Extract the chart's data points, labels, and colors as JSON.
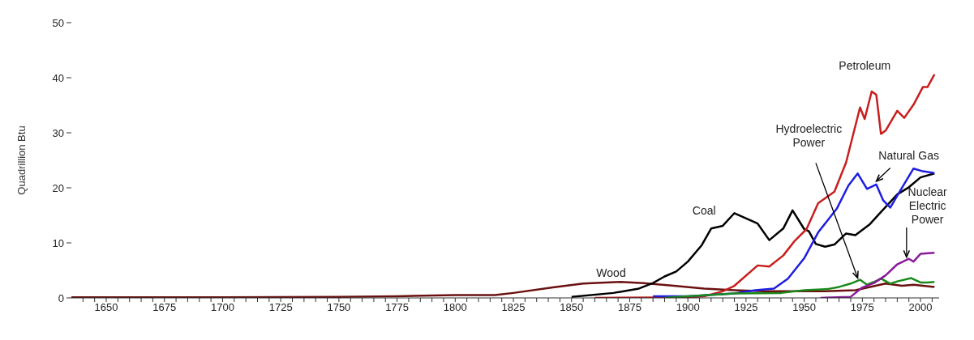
{
  "chart_data": {
    "type": "line",
    "ylabel": "Quadrillion Btu",
    "xlim": [
      1635,
      2008
    ],
    "ylim": [
      0,
      50
    ],
    "yticks": [
      0,
      10,
      20,
      30,
      40,
      50
    ],
    "xticks": [
      {
        "value": 1640,
        "label": null
      },
      {
        "value": 1645,
        "label": null
      },
      1650,
      {
        "value": 1655,
        "label": null
      },
      {
        "value": 1660,
        "label": null
      },
      {
        "value": 1665,
        "label": null
      },
      {
        "value": 1670,
        "label": null
      },
      1675,
      {
        "value": 1680,
        "label": null
      },
      {
        "value": 1685,
        "label": null
      },
      {
        "value": 1690,
        "label": null
      },
      {
        "value": 1695,
        "label": null
      },
      1700,
      {
        "value": 1705,
        "label": null
      },
      {
        "value": 1710,
        "label": null
      },
      {
        "value": 1715,
        "label": null
      },
      {
        "value": 1720,
        "label": null
      },
      1725,
      {
        "value": 1730,
        "label": null
      },
      {
        "value": 1735,
        "label": null
      },
      {
        "value": 1740,
        "label": null
      },
      {
        "value": 1745,
        "label": null
      },
      1750,
      {
        "value": 1755,
        "label": null
      },
      {
        "value": 1760,
        "label": null
      },
      {
        "value": 1765,
        "label": null
      },
      {
        "value": 1770,
        "label": null
      },
      1775,
      {
        "value": 1780,
        "label": null
      },
      {
        "value": 1785,
        "label": null
      },
      {
        "value": 1790,
        "label": null
      },
      {
        "value": 1795,
        "label": null
      },
      1800,
      {
        "value": 1805,
        "label": null
      },
      {
        "value": 1810,
        "label": null
      },
      {
        "value": 1815,
        "label": null
      },
      {
        "value": 1820,
        "label": null
      },
      1825,
      {
        "value": 1830,
        "label": null
      },
      {
        "value": 1835,
        "label": null
      },
      {
        "value": 1840,
        "label": null
      },
      {
        "value": 1845,
        "label": null
      },
      1850,
      {
        "value": 1855,
        "label": null
      },
      {
        "value": 1860,
        "label": null
      },
      {
        "value": 1865,
        "label": null
      },
      {
        "value": 1870,
        "label": null
      },
      1875,
      {
        "value": 1880,
        "label": null
      },
      {
        "value": 1885,
        "label": null
      },
      {
        "value": 1890,
        "label": null
      },
      {
        "value": 1895,
        "label": null
      },
      1900,
      {
        "value": 1905,
        "label": null
      },
      {
        "value": 1910,
        "label": null
      },
      {
        "value": 1915,
        "label": null
      },
      {
        "value": 1920,
        "label": null
      },
      1925,
      {
        "value": 1930,
        "label": null
      },
      {
        "value": 1935,
        "label": null
      },
      {
        "value": 1940,
        "label": null
      },
      {
        "value": 1945,
        "label": null
      },
      1950,
      {
        "value": 1955,
        "label": null
      },
      {
        "value": 1960,
        "label": null
      },
      {
        "value": 1965,
        "label": null
      },
      {
        "value": 1970,
        "label": null
      },
      1975,
      {
        "value": 1980,
        "label": null
      },
      {
        "value": 1985,
        "label": null
      },
      {
        "value": 1990,
        "label": null
      },
      {
        "value": 1995,
        "label": null
      },
      2000,
      {
        "value": 2005,
        "label": null
      }
    ],
    "marker": "none",
    "line_style": "solid",
    "series": [
      {
        "name": "Wood",
        "color": "#6b1010",
        "x": [
          1635,
          1700,
          1750,
          1775,
          1800,
          1817,
          1825,
          1842,
          1855,
          1871,
          1881,
          1894,
          1907,
          1920,
          1933,
          1946,
          1959,
          1972,
          1985,
          1992,
          1997,
          2006
        ],
        "values": [
          0.1,
          0.1,
          0.2,
          0.3,
          0.5,
          0.5,
          0.9,
          1.9,
          2.6,
          2.9,
          2.7,
          2.2,
          1.7,
          1.4,
          1.2,
          1.2,
          1.2,
          1.4,
          2.6,
          2.2,
          2.4,
          2.0
        ]
      },
      {
        "name": "Coal",
        "color": "#000000",
        "x": [
          1850,
          1868,
          1879,
          1885,
          1890,
          1895,
          1900,
          1906,
          1910,
          1915,
          1920,
          1930,
          1935,
          1941,
          1945,
          1950,
          1952,
          1955,
          1959,
          1963,
          1968,
          1972,
          1978,
          1983,
          1990,
          1995,
          2000,
          2006
        ],
        "values": [
          0.2,
          0.9,
          1.7,
          2.7,
          3.9,
          4.8,
          6.6,
          9.6,
          12.6,
          13.1,
          15.4,
          13.5,
          10.5,
          12.6,
          15.9,
          12.5,
          12.1,
          9.8,
          9.3,
          9.7,
          11.7,
          11.4,
          13.3,
          15.6,
          18.8,
          20.1,
          21.9,
          22.6
        ]
      },
      {
        "name": "Petroleum",
        "color": "#c81e1e",
        "x": [
          1860,
          1900,
          1907,
          1915,
          1920,
          1930,
          1935,
          1941,
          1946,
          1951,
          1956,
          1963,
          1968,
          1974,
          1976,
          1979,
          1981,
          1983,
          1985,
          1990,
          1993,
          1997,
          2001,
          2003,
          2006
        ],
        "values": [
          0,
          0.1,
          0.3,
          1.2,
          2.2,
          5.9,
          5.7,
          7.7,
          10.4,
          12.5,
          17.2,
          19.3,
          24.6,
          34.6,
          32.5,
          37.5,
          36.9,
          29.8,
          30.4,
          34,
          32.7,
          35.1,
          38.3,
          38.3,
          40.6
        ]
      },
      {
        "name": "Natural Gas",
        "color": "#1e1ee0",
        "x": [
          1885,
          1900,
          1920,
          1929,
          1937,
          1943,
          1950,
          1956,
          1964,
          1969,
          1973,
          1977,
          1981,
          1984,
          1987,
          1991,
          1997,
          2001,
          2006
        ],
        "values": [
          0.3,
          0.3,
          0.8,
          1.4,
          1.7,
          3.5,
          7.2,
          11.9,
          16.2,
          20.4,
          22.6,
          19.8,
          20.6,
          17.7,
          16.4,
          19.3,
          23.5,
          23,
          22.7
        ]
      },
      {
        "name": "Hydroelectric Power",
        "color": "#1a8a1a",
        "x": [
          1890,
          1900,
          1920,
          1940,
          1950,
          1960,
          1965,
          1970,
          1974,
          1977,
          1980,
          1983,
          1987,
          1990,
          1996,
          2000,
          2003,
          2006
        ],
        "values": [
          0,
          0.3,
          0.8,
          0.9,
          1.4,
          1.6,
          2.0,
          2.6,
          3.3,
          2.4,
          2.9,
          3.5,
          2.6,
          3.0,
          3.6,
          2.8,
          2.8,
          2.9
        ]
      },
      {
        "name": "Nuclear Electric Power",
        "color": "#8b1a9b",
        "x": [
          1957,
          1970,
          1975,
          1980,
          1985,
          1990,
          1995,
          1997,
          2000,
          2006
        ],
        "values": [
          0,
          0.2,
          1.9,
          2.7,
          4.1,
          6.1,
          7.1,
          6.6,
          8.0,
          8.2
        ]
      }
    ]
  }
}
